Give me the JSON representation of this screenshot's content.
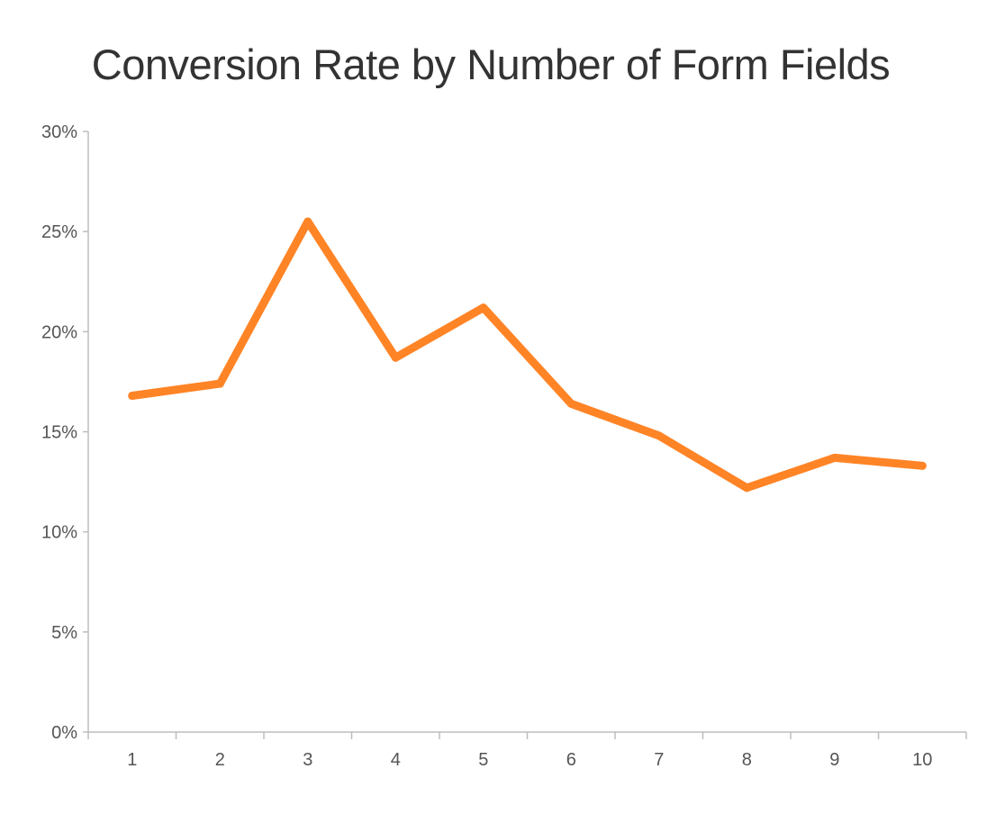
{
  "chart_data": {
    "type": "line",
    "title": "Conversion Rate by Number of Form Fields",
    "xlabel": "",
    "ylabel": "",
    "categories": [
      "1",
      "2",
      "3",
      "4",
      "5",
      "6",
      "7",
      "8",
      "9",
      "10"
    ],
    "series": [
      {
        "color": "#ff8426",
        "values": [
          16.8,
          17.4,
          25.5,
          18.7,
          21.2,
          16.4,
          14.8,
          12.2,
          13.7,
          13.3
        ]
      }
    ],
    "ylim": [
      0,
      30
    ],
    "yticks": [
      0,
      5,
      10,
      15,
      20,
      25,
      30
    ],
    "ytick_labels": [
      "0%",
      "5%",
      "10%",
      "15%",
      "20%",
      "25%",
      "30%"
    ],
    "grid": false,
    "legend": "none"
  }
}
